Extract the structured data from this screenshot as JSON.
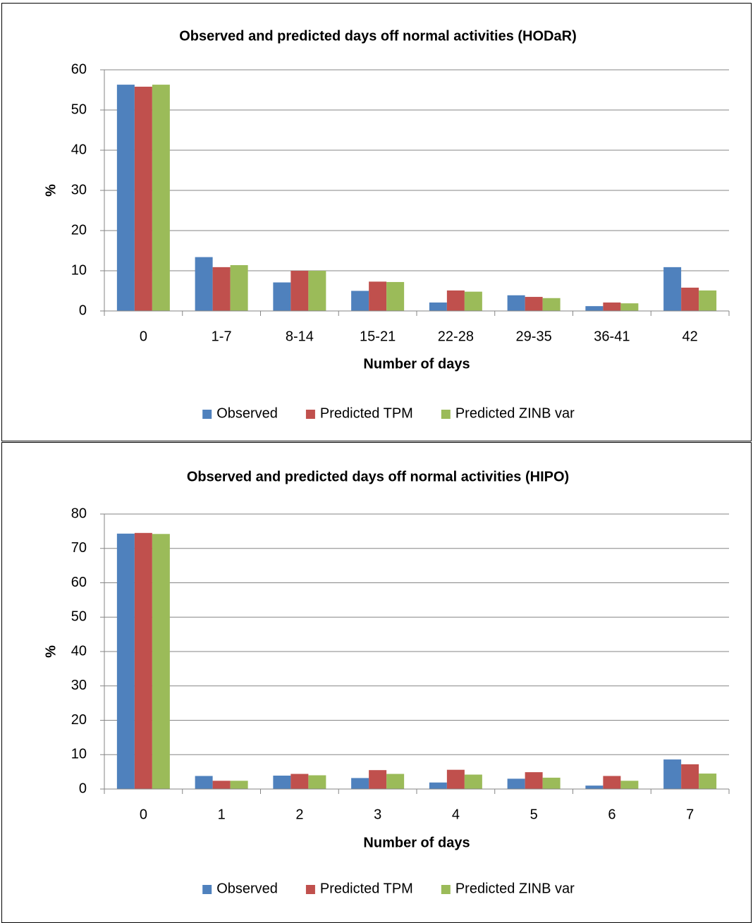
{
  "chart_data": [
    {
      "type": "bar",
      "title": "Observed and predicted days off normal activities (HODaR)",
      "x_label": "Number of days",
      "y_label": "%",
      "categories": [
        "0",
        "1-7",
        "8-14",
        "15-21",
        "22-28",
        "29-35",
        "36-41",
        "42"
      ],
      "series": [
        {
          "name": "Observed",
          "color": "#4f81bd",
          "values": [
            56.3,
            13.4,
            7.1,
            5.0,
            2.1,
            3.9,
            1.2,
            10.9
          ]
        },
        {
          "name": "Predicted TPM",
          "color": "#c0504d",
          "values": [
            55.8,
            10.9,
            10.0,
            7.3,
            5.1,
            3.5,
            2.1,
            5.8
          ]
        },
        {
          "name": "Predicted ZINB var",
          "color": "#9bbb59",
          "values": [
            56.3,
            11.4,
            10.0,
            7.2,
            4.8,
            3.2,
            1.9,
            5.1
          ]
        }
      ],
      "ylim": [
        0,
        60
      ],
      "yticks": [
        0,
        10,
        20,
        30,
        40,
        50,
        60
      ],
      "grid": true,
      "legend": "bottom"
    },
    {
      "type": "bar",
      "title": "Observed and predicted days off normal activities (HIPO)",
      "x_label": "Number of days",
      "y_label": "%",
      "categories": [
        "0",
        "1",
        "2",
        "3",
        "4",
        "5",
        "6",
        "7"
      ],
      "series": [
        {
          "name": "Observed",
          "color": "#4f81bd",
          "values": [
            74.3,
            3.8,
            3.9,
            3.2,
            1.9,
            3.0,
            1.0,
            8.6
          ]
        },
        {
          "name": "Predicted TPM",
          "color": "#c0504d",
          "values": [
            74.5,
            2.4,
            4.4,
            5.5,
            5.6,
            4.9,
            3.8,
            7.2
          ]
        },
        {
          "name": "Predicted ZINB var",
          "color": "#9bbb59",
          "values": [
            74.2,
            2.4,
            4.0,
            4.4,
            4.2,
            3.3,
            2.4,
            4.5
          ]
        }
      ],
      "ylim": [
        0,
        80
      ],
      "yticks": [
        0,
        10,
        20,
        30,
        40,
        50,
        60,
        70,
        80
      ],
      "grid": true,
      "legend": "bottom"
    }
  ]
}
